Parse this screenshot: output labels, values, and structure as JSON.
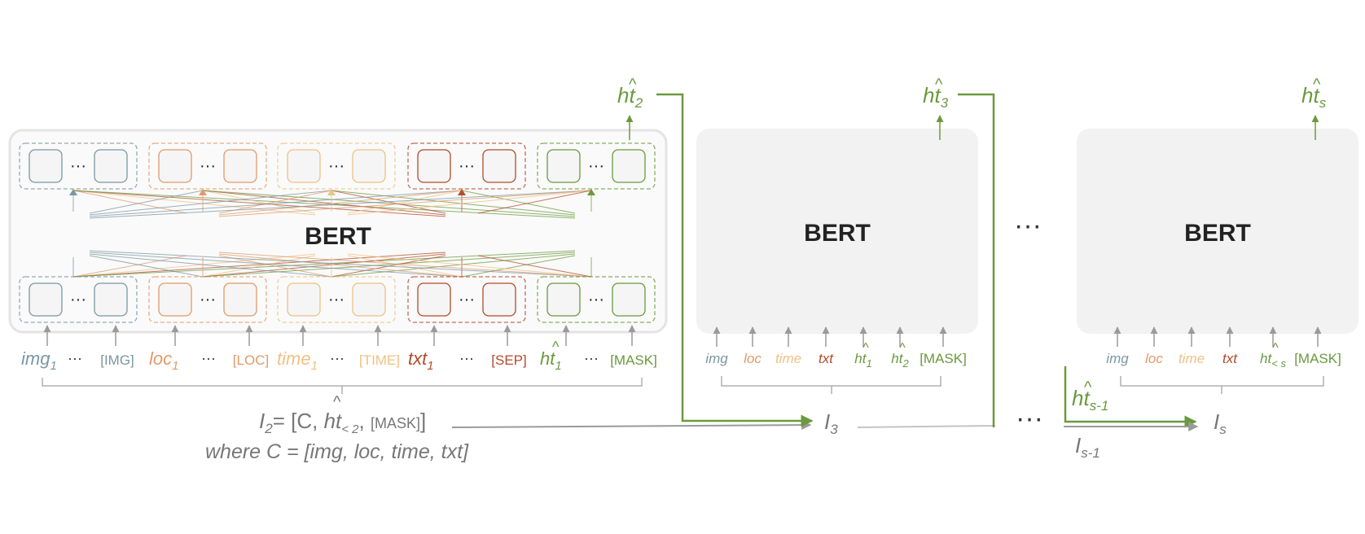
{
  "colors": {
    "img": "#7a97a3",
    "loc": "#e19a6a",
    "time": "#efc184",
    "txt": "#b54a2a",
    "ht": "#6a9a3c",
    "gray": "#8c8c8c",
    "panel": "#f2f2f2"
  },
  "ellipsis": "···",
  "block1": {
    "bert_label": "BERT",
    "output": {
      "base": "ht",
      "sub": "2"
    },
    "tokens": [
      {
        "name": "img",
        "sub": "1",
        "special": "[IMG]"
      },
      {
        "name": "loc",
        "sub": "1",
        "special": "[LOC]"
      },
      {
        "name": "time",
        "sub": "1",
        "special": "[TIME]"
      },
      {
        "name": "txt",
        "sub": "1",
        "special": "[SEP]"
      },
      {
        "name": "ht",
        "sub": "1",
        "special": "[MASK]"
      }
    ],
    "input_formula": {
      "lhs": "I",
      "lhs_sub": "2",
      "eq": "= [C, ",
      "ht": "ht",
      "ht_sub": "< 2",
      "tail": ", ",
      "mask": "[MASK]",
      "close": "]"
    },
    "where_line": {
      "prefix": "where C = [",
      "body": "img, loc, time, txt",
      "suffix": "]"
    }
  },
  "block2": {
    "bert_label": "BERT",
    "output": {
      "base": "ht",
      "sub": "3"
    },
    "tokens": [
      {
        "text": "img"
      },
      {
        "text": "loc"
      },
      {
        "text": "time"
      },
      {
        "text": "txt"
      },
      {
        "base": "ht",
        "sub": "1"
      },
      {
        "base": "ht",
        "sub": "2"
      },
      {
        "text": "[MASK]"
      }
    ],
    "input_label": {
      "base": "I",
      "sub": "3"
    }
  },
  "middle_ellipsis": "···",
  "block3": {
    "bert_label": "BERT",
    "output": {
      "base": "ht",
      "sub": "s"
    },
    "tokens": [
      {
        "text": "img"
      },
      {
        "text": "loc"
      },
      {
        "text": "time"
      },
      {
        "text": "txt"
      },
      {
        "base": "ht",
        "sub": "< s"
      },
      {
        "text": "[MASK]"
      }
    ],
    "prev_output": {
      "base": "ht",
      "sub": "s-1"
    },
    "prev_input": {
      "base": "I",
      "sub": "s-1"
    },
    "input_label": {
      "base": "I",
      "sub": "s"
    }
  }
}
